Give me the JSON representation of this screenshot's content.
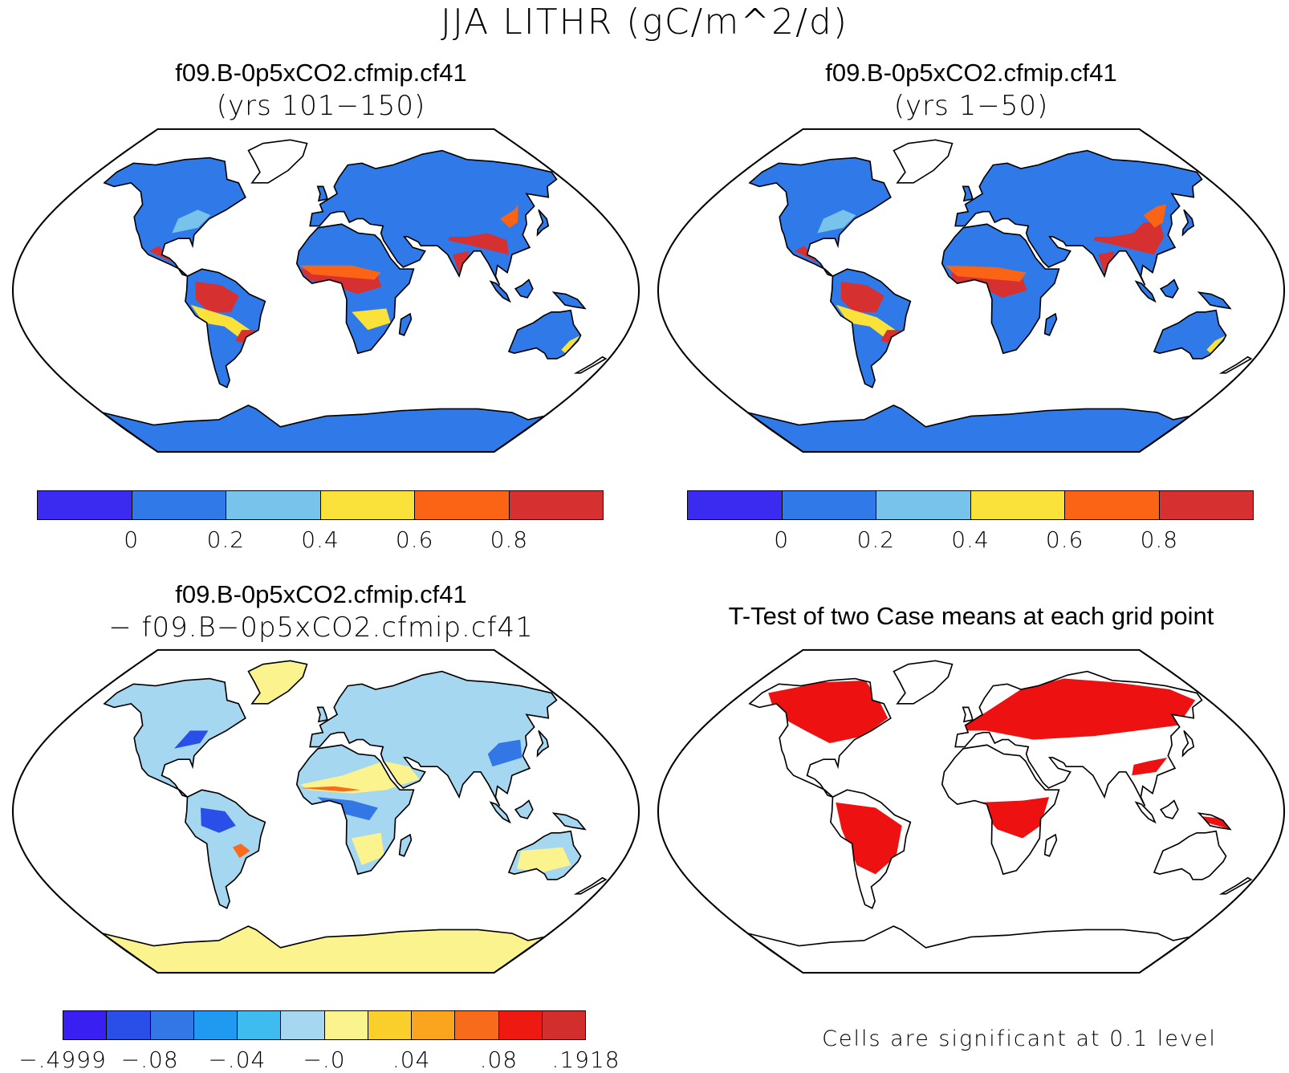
{
  "title": "JJA LITHR (gC/m^2/d)",
  "panels": [
    {
      "id": "case1",
      "title": "f09.B-0p5xCO2.cfmip.cf41",
      "subtitle": "(yrs 101−150)",
      "colorbar": {
        "colors": [
          "#3b2bf0",
          "#2f7ae8",
          "#78c3ec",
          "#fbe23b",
          "#fa6414",
          "#d63030"
        ],
        "tick_labels": [
          "0",
          "0.2",
          "0.4",
          "0.6",
          "0.8"
        ]
      }
    },
    {
      "id": "case2",
      "title": "f09.B-0p5xCO2.cfmip.cf41",
      "subtitle": "(yrs 1−50)",
      "colorbar": {
        "colors": [
          "#3b2bf0",
          "#2f7ae8",
          "#78c3ec",
          "#fbe23b",
          "#fa6414",
          "#d63030"
        ],
        "tick_labels": [
          "0",
          "0.2",
          "0.4",
          "0.6",
          "0.8"
        ]
      }
    },
    {
      "id": "diff",
      "title": "f09.B-0p5xCO2.cfmip.cf41",
      "subtitle": "− f09.B−0p5xCO2.cfmip.cf41",
      "colorbar": {
        "colors": [
          "#3a1ff2",
          "#2a4ee8",
          "#3377e6",
          "#1f9af0",
          "#40bbf0",
          "#a6d7f0",
          "#fbf38d",
          "#fbcf2b",
          "#fba41e",
          "#f86b1a",
          "#ee1a12",
          "#d22e2e"
        ],
        "tick_labels": [
          "−.4999",
          "−.08",
          "−.04",
          "−.0",
          ".04",
          ".08",
          ".1918"
        ]
      }
    },
    {
      "id": "ttest",
      "title": "T-Test of two Case means at each grid point",
      "note": "Cells are significant at 0.1 level"
    }
  ]
}
